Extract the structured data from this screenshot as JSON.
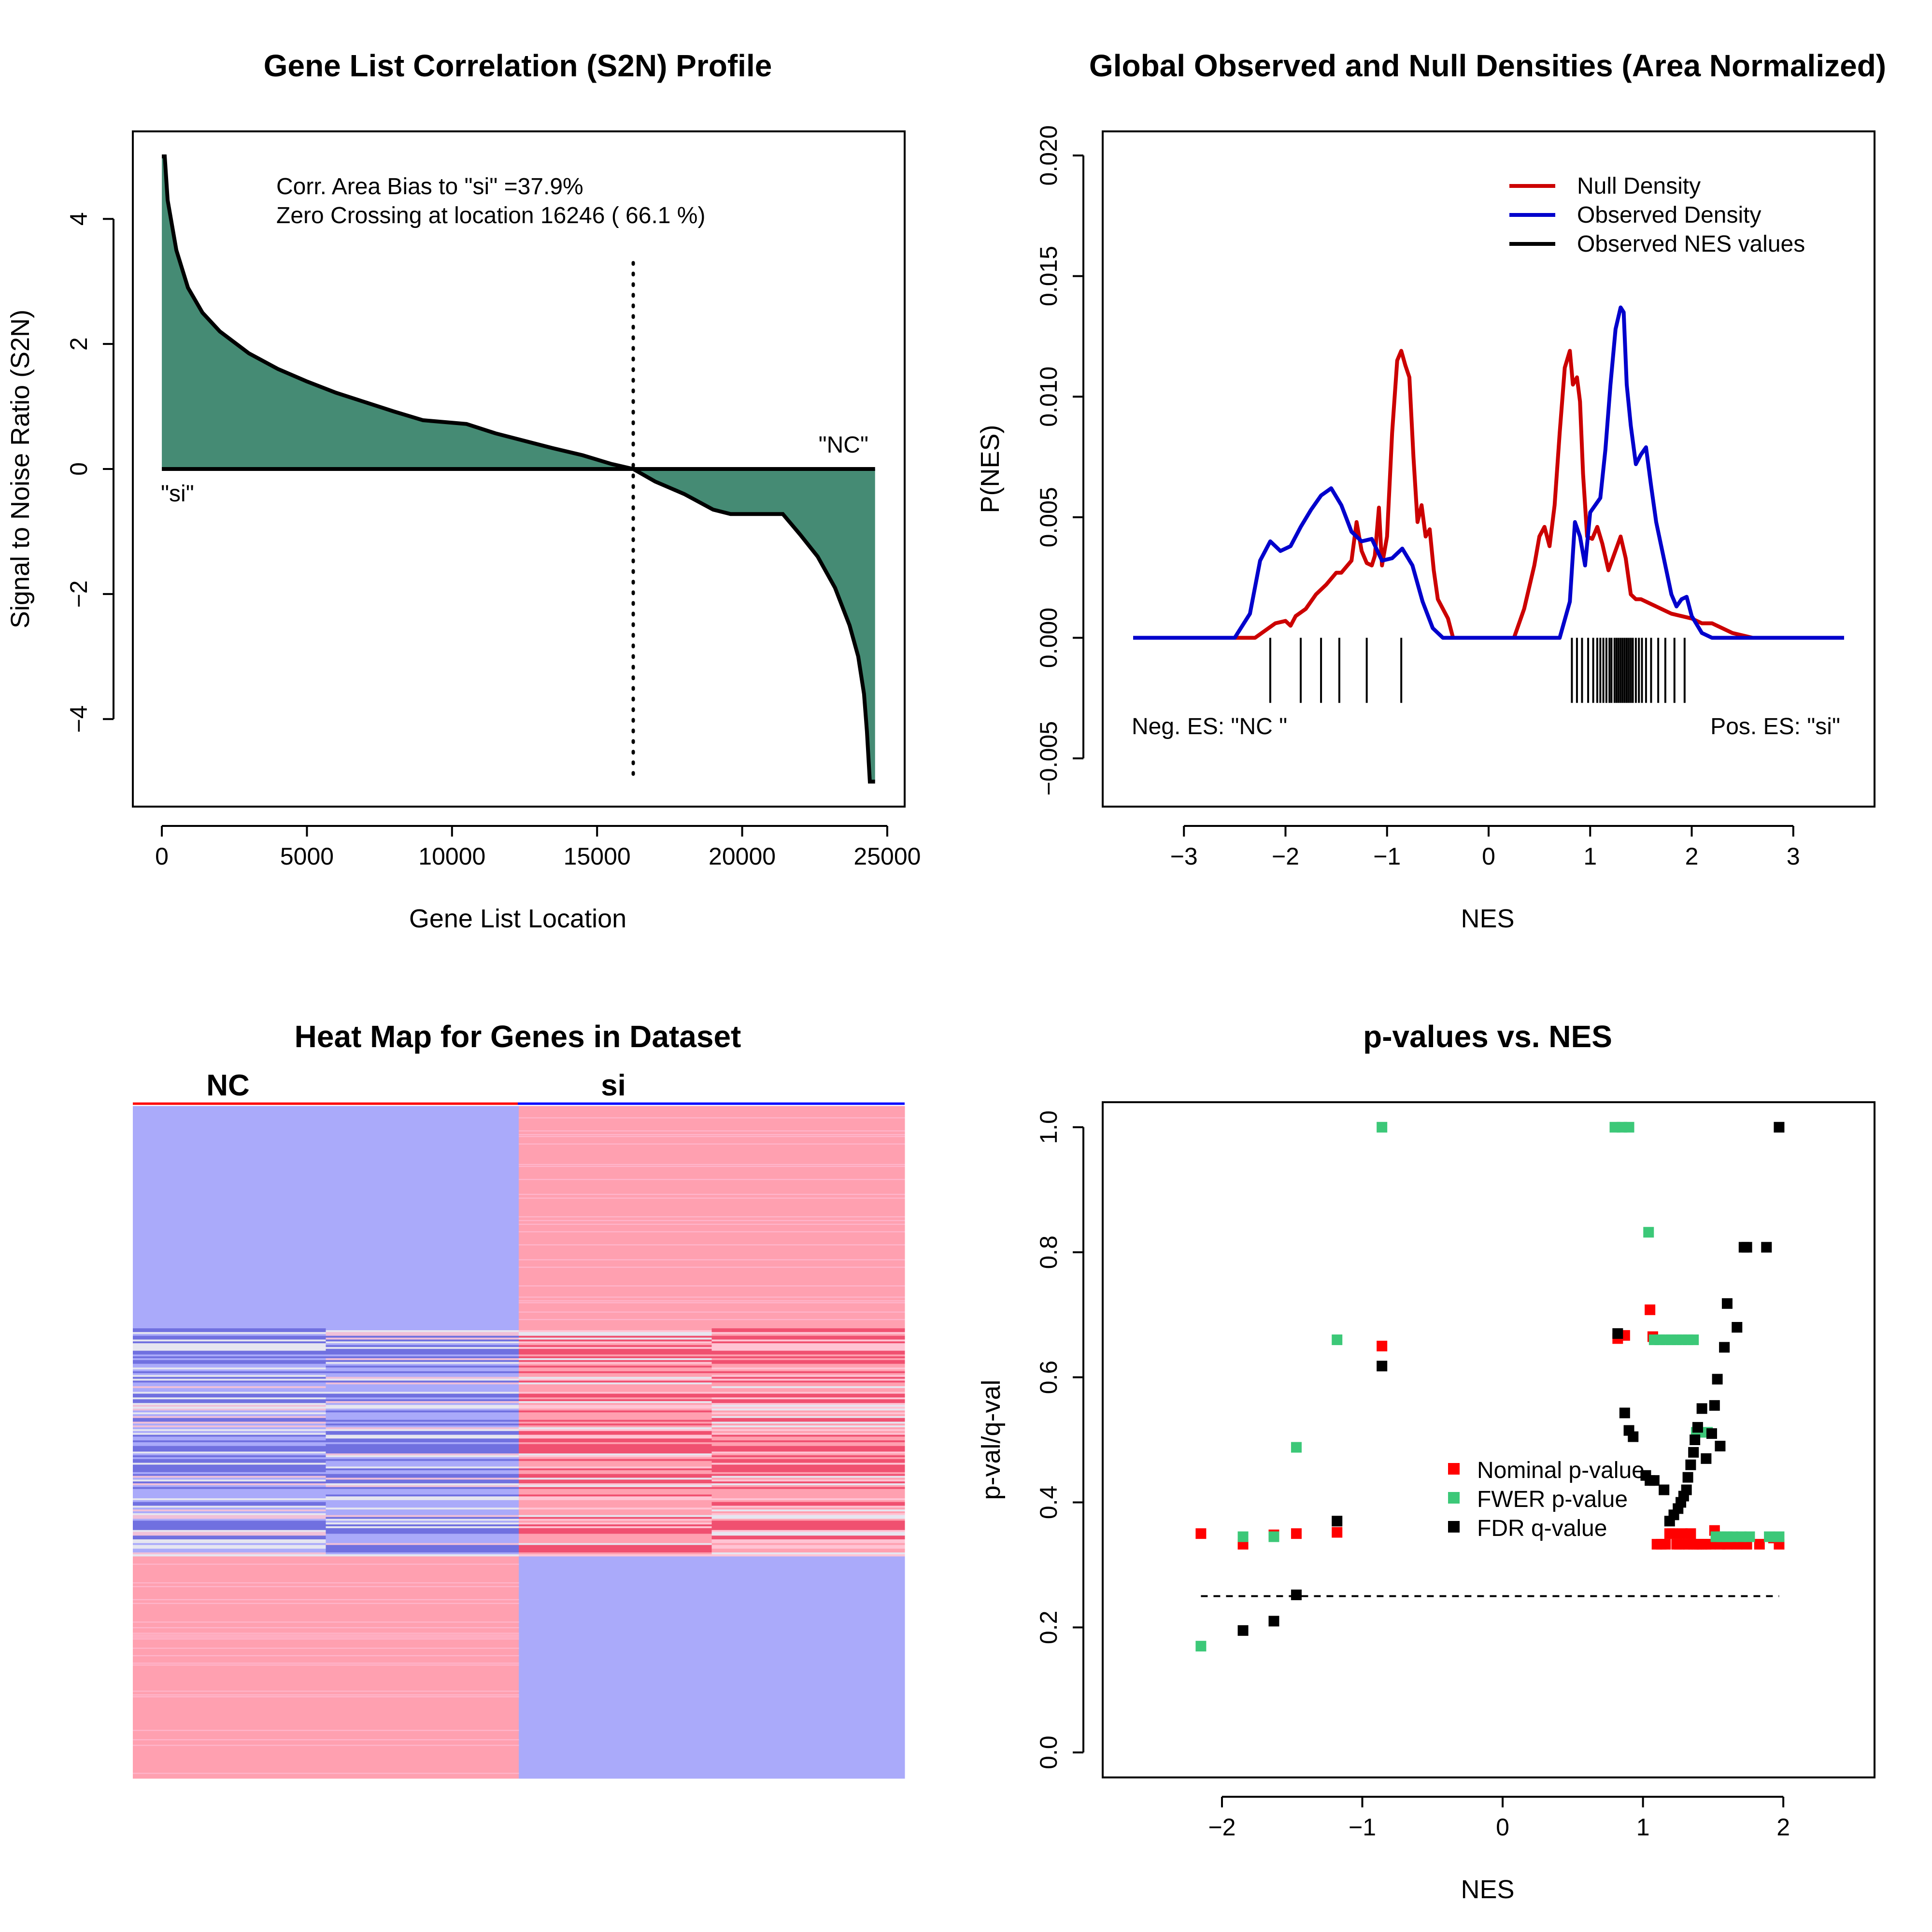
{
  "chart_data": [
    {
      "type": "area",
      "title": "Gene List Correlation (S2N) Profile",
      "xlabel": "Gene List Location",
      "ylabel": "Signal to Noise Ratio (S2N)",
      "xlim": [
        -1000,
        25600
      ],
      "ylim": [
        -5.4,
        5.4
      ],
      "x_ticks": [
        0,
        5000,
        10000,
        15000,
        20000,
        25000
      ],
      "x_tick_labels": [
        "0",
        "5000",
        "10000",
        "15000",
        "20000",
        "25000"
      ],
      "y_ticks": [
        -4,
        -2,
        0,
        2,
        4
      ],
      "y_tick_labels": [
        "−4",
        "−2",
        "0",
        "2",
        "4"
      ],
      "fill_color": "#458b74",
      "x": [
        0,
        100,
        200,
        500,
        900,
        1400,
        2000,
        3000,
        4000,
        5000,
        6000,
        7000,
        8000,
        9000,
        10500,
        11500,
        12500,
        13500,
        14500,
        15500,
        16246,
        17000,
        18000,
        19000,
        19600,
        21400,
        22000,
        22600,
        23200,
        23700,
        24000,
        24200,
        24300,
        24400,
        24580
      ],
      "y": [
        5.0,
        5.0,
        4.3,
        3.5,
        2.9,
        2.5,
        2.2,
        1.85,
        1.6,
        1.4,
        1.22,
        1.07,
        0.92,
        0.78,
        0.72,
        0.57,
        0.45,
        0.33,
        0.22,
        0.08,
        0.0,
        -0.2,
        -0.4,
        -0.65,
        -0.72,
        -0.72,
        -1.05,
        -1.4,
        -1.9,
        -2.5,
        -3.0,
        -3.6,
        -4.2,
        -5.0,
        -5.0
      ],
      "zero_crossing": 16246,
      "annotations": [
        "Corr. Area Bias to \"si\" =37.9%",
        "Zero Crossing at location  16246  ( 66.1  %)"
      ],
      "pos_label": "\"si\"",
      "neg_label": "\"NC\""
    },
    {
      "type": "line",
      "title": "Global Observed and Null Densities (Area Normalized)",
      "xlabel": "NES",
      "ylabel": "P(NES)",
      "xlim": [
        -3.8,
        3.8
      ],
      "ylim": [
        -0.007,
        0.021
      ],
      "x_ticks": [
        -3,
        -2,
        -1,
        0,
        1,
        2,
        3
      ],
      "x_tick_labels": [
        "−3",
        "−2",
        "−1",
        "0",
        "1",
        "2",
        "3"
      ],
      "y_ticks": [
        -0.005,
        0.0,
        0.005,
        0.01,
        0.015,
        0.02
      ],
      "y_tick_labels": [
        "−0.005",
        "0.000",
        "0.005",
        "0.010",
        "0.015",
        "0.020"
      ],
      "series": [
        {
          "name": "Null Density",
          "color": "#cc0000",
          "x": [
            -3.5,
            -2.3,
            -2.1,
            -2.0,
            -1.95,
            -1.9,
            -1.8,
            -1.7,
            -1.6,
            -1.5,
            -1.45,
            -1.35,
            -1.3,
            -1.25,
            -1.2,
            -1.15,
            -1.12,
            -1.08,
            -1.05,
            -1.0,
            -0.95,
            -0.9,
            -0.86,
            -0.82,
            -0.78,
            -0.74,
            -0.7,
            -0.66,
            -0.62,
            -0.58,
            -0.54,
            -0.5,
            -0.45,
            -0.4,
            -0.35,
            -0.3,
            -0.25,
            0.25,
            0.35,
            0.45,
            0.5,
            0.55,
            0.6,
            0.65,
            0.7,
            0.75,
            0.8,
            0.83,
            0.87,
            0.9,
            0.93,
            0.97,
            1.02,
            1.07,
            1.12,
            1.18,
            1.24,
            1.3,
            1.35,
            1.4,
            1.45,
            1.5,
            1.6,
            1.7,
            1.8,
            1.9,
            2.0,
            2.1,
            2.2,
            2.3,
            2.4,
            2.6,
            3.5
          ],
          "y": [
            0.0,
            0.0,
            0.0006,
            0.0007,
            0.0005,
            0.0009,
            0.0012,
            0.0018,
            0.0022,
            0.0027,
            0.0027,
            0.0032,
            0.0048,
            0.0036,
            0.0031,
            0.003,
            0.0034,
            0.0054,
            0.003,
            0.0042,
            0.0085,
            0.0115,
            0.0119,
            0.0113,
            0.0108,
            0.0075,
            0.0048,
            0.0055,
            0.0042,
            0.0045,
            0.0028,
            0.0016,
            0.0012,
            0.0008,
            0.0,
            0.0,
            0.0,
            0.0,
            0.0012,
            0.003,
            0.0042,
            0.0046,
            0.0038,
            0.0055,
            0.0085,
            0.0112,
            0.0119,
            0.0105,
            0.0108,
            0.0098,
            0.0068,
            0.0042,
            0.0041,
            0.0046,
            0.0039,
            0.0028,
            0.0035,
            0.0042,
            0.0033,
            0.0018,
            0.0016,
            0.0016,
            0.0014,
            0.0012,
            0.001,
            0.0009,
            0.0008,
            0.0006,
            0.0006,
            0.0004,
            0.0002,
            0.0,
            0.0
          ]
        },
        {
          "name": "Observed Density",
          "color": "#0000cc",
          "x": [
            -3.5,
            -2.5,
            -2.35,
            -2.25,
            -2.15,
            -2.05,
            -1.95,
            -1.85,
            -1.75,
            -1.65,
            -1.55,
            -1.45,
            -1.35,
            -1.25,
            -1.15,
            -1.05,
            -0.95,
            -0.85,
            -0.75,
            -0.65,
            -0.55,
            -0.45,
            -0.35,
            0.7,
            0.8,
            0.85,
            0.9,
            0.95,
            1.0,
            1.05,
            1.1,
            1.15,
            1.2,
            1.25,
            1.3,
            1.33,
            1.36,
            1.4,
            1.45,
            1.5,
            1.55,
            1.6,
            1.65,
            1.7,
            1.75,
            1.8,
            1.85,
            1.9,
            1.95,
            2.0,
            2.1,
            2.2,
            3.5
          ],
          "y": [
            0.0,
            0.0,
            0.001,
            0.0032,
            0.004,
            0.0036,
            0.0038,
            0.0046,
            0.0053,
            0.0059,
            0.0062,
            0.0055,
            0.0044,
            0.004,
            0.0041,
            0.0032,
            0.0033,
            0.0037,
            0.003,
            0.0015,
            0.0004,
            0.0,
            0.0,
            0.0,
            0.0015,
            0.0048,
            0.0042,
            0.003,
            0.0052,
            0.0055,
            0.0058,
            0.0078,
            0.0105,
            0.0128,
            0.0137,
            0.0135,
            0.0105,
            0.0088,
            0.0072,
            0.0076,
            0.0079,
            0.0063,
            0.0048,
            0.0038,
            0.0028,
            0.0018,
            0.0013,
            0.0016,
            0.0017,
            0.0009,
            0.0002,
            0.0,
            0.0
          ]
        },
        {
          "name": "Observed NES values",
          "color": "#000000",
          "x": [
            -2.15,
            -1.85,
            -1.65,
            -1.47,
            -1.2,
            -0.86,
            0.82,
            0.87,
            0.92,
            0.98,
            1.03,
            1.07,
            1.1,
            1.13,
            1.16,
            1.19,
            1.21,
            1.24,
            1.26,
            1.28,
            1.3,
            1.32,
            1.34,
            1.36,
            1.38,
            1.4,
            1.42,
            1.45,
            1.48,
            1.51,
            1.55,
            1.6,
            1.67,
            1.74,
            1.83,
            1.93
          ]
        }
      ],
      "neg_es_label": "Neg. ES: \"NC \"",
      "pos_es_label": "Pos. ES: \"si\""
    },
    {
      "type": "heatmap",
      "title": "Heat Map for Genes in Dataset",
      "columns": [
        "NC",
        "",
        "si",
        ""
      ],
      "group_labels": [
        "NC",
        "si"
      ],
      "colors": {
        "low": "#aaaafa",
        "mid": "#e6e6f0",
        "high": "#ffa0b0",
        "dark_low": "#7070e0",
        "dark_high": "#f05070"
      },
      "rows": [
        {
          "frac": 0.33,
          "pattern": [
            "low",
            "low",
            "high",
            "high"
          ]
        },
        {
          "frac": 0.34,
          "pattern": [
            "mixed-low",
            "mixed-low",
            "mixed-high",
            "mixed-high"
          ]
        },
        {
          "frac": 0.33,
          "pattern": [
            "high",
            "high",
            "low",
            "low"
          ]
        }
      ]
    },
    {
      "type": "scatter",
      "title": "p-values vs. NES",
      "xlabel": "NES",
      "ylabel": "p-val/q-val",
      "xlim": [
        -2.85,
        2.65
      ],
      "ylim": [
        -0.04,
        1.04
      ],
      "x_ticks": [
        -2,
        -1,
        0,
        1,
        2
      ],
      "x_tick_labels": [
        "−2",
        "−1",
        "0",
        "1",
        "2"
      ],
      "y_ticks": [
        0.0,
        0.2,
        0.4,
        0.6,
        0.8,
        1.0
      ],
      "y_tick_labels": [
        "0.0",
        "0.2",
        "0.4",
        "0.6",
        "0.8",
        "1.0"
      ],
      "threshold": 0.25,
      "series": [
        {
          "name": "Nominal p-value",
          "color": "#ff0000",
          "x": [
            -2.15,
            -1.85,
            -1.63,
            -1.47,
            -1.18,
            -0.86,
            0.82,
            0.87,
            1.05,
            1.07,
            1.1,
            1.13,
            1.16,
            1.19,
            1.21,
            1.24,
            1.26,
            1.28,
            1.3,
            1.32,
            1.34,
            1.36,
            1.38,
            1.4,
            1.42,
            1.45,
            1.48,
            1.51,
            1.55,
            1.6,
            1.67,
            1.74,
            1.83,
            1.93,
            1.97
          ],
          "y": [
            0.35,
            0.333,
            0.348,
            0.35,
            0.352,
            0.65,
            0.662,
            0.667,
            0.708,
            0.665,
            0.333,
            0.333,
            0.333,
            0.35,
            0.35,
            0.333,
            0.333,
            0.35,
            0.333,
            0.333,
            0.35,
            0.333,
            0.333,
            0.333,
            0.333,
            0.333,
            0.333,
            0.355,
            0.333,
            0.333,
            0.333,
            0.333,
            0.333,
            0.343,
            0.333
          ]
        },
        {
          "name": "FWER p-value",
          "color": "#3cc878",
          "x": [
            -2.15,
            -1.85,
            -1.63,
            -1.47,
            -1.18,
            -0.86,
            0.8,
            0.85,
            0.9,
            1.04,
            1.08,
            1.12,
            1.16,
            1.2,
            1.24,
            1.28,
            1.32,
            1.36,
            1.38,
            1.42,
            1.46,
            1.52,
            1.56,
            1.6,
            1.64,
            1.7,
            1.76,
            1.9,
            1.97
          ],
          "y": [
            0.17,
            0.345,
            0.345,
            0.488,
            0.66,
            1.0,
            1.0,
            1.0,
            1.0,
            0.832,
            0.66,
            0.66,
            0.66,
            0.66,
            0.66,
            0.66,
            0.66,
            0.66,
            0.512,
            0.512,
            0.512,
            0.345,
            0.345,
            0.345,
            0.345,
            0.345,
            0.345,
            0.345,
            0.345
          ]
        },
        {
          "name": "FDR q-value",
          "color": "#000000",
          "x": [
            -1.85,
            -1.63,
            -1.47,
            -1.18,
            -0.86,
            0.82,
            0.87,
            0.9,
            0.93,
            1.02,
            1.05,
            1.08,
            1.15,
            1.19,
            1.22,
            1.25,
            1.27,
            1.29,
            1.31,
            1.32,
            1.34,
            1.36,
            1.37,
            1.39,
            1.42,
            1.45,
            1.49,
            1.51,
            1.53,
            1.55,
            1.6,
            1.58,
            1.67,
            1.72,
            1.74,
            1.88,
            1.97
          ],
          "y": [
            0.195,
            0.21,
            0.252,
            0.37,
            0.618,
            0.67,
            0.543,
            0.515,
            0.505,
            0.443,
            0.435,
            0.435,
            0.42,
            0.37,
            0.38,
            0.39,
            0.4,
            0.41,
            0.42,
            0.44,
            0.46,
            0.48,
            0.5,
            0.52,
            0.55,
            0.47,
            0.51,
            0.555,
            0.597,
            0.49,
            0.718,
            0.648,
            0.68,
            0.808,
            0.808,
            0.808,
            1.0
          ]
        }
      ],
      "legend_position": "center"
    }
  ]
}
